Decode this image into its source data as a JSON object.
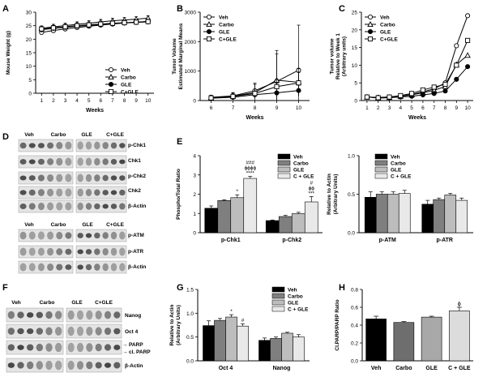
{
  "panel_labels": [
    "A",
    "B",
    "C",
    "D",
    "E",
    "F",
    "G",
    "H"
  ],
  "colors": {
    "veh": "#000000",
    "carbo": "#7f7f7f",
    "gle": "#bdbdbd",
    "cgle": "#e9e9e9",
    "bar_h_veh": "#000000",
    "bar_h_carbo": "#6e6e6e",
    "bar_h_gle": "#a8a8a8",
    "bar_h_cgle": "#dcdcdc"
  },
  "blots": {
    "D_top": {
      "groups": [
        "Veh",
        "Carbo",
        "GLE",
        "C+GLE"
      ],
      "rows": [
        "p-Chk1",
        "Chk1",
        "p-Chk2",
        "Chk2",
        "β-Actin"
      ]
    },
    "D_bottom": {
      "groups": [
        "Veh",
        "Carbo",
        "GLE",
        "C+GLE"
      ],
      "rows": [
        "p-ATM",
        "p-ATR",
        "β-Actin"
      ]
    },
    "F": {
      "groups": [
        "Veh",
        "Carbo",
        "GLE",
        "C+GLE"
      ],
      "rows": [
        "Nanog",
        "Oct 4",
        "PARP",
        "cl. PARP",
        "β-Actin"
      ],
      "arrow_glyph": "→"
    }
  },
  "chart_data": [
    {
      "id": "A",
      "type": "line",
      "xlabel": "Weeks",
      "ylabel": "Mouse Weight (g)",
      "x": [
        1,
        2,
        3,
        4,
        5,
        6,
        7,
        8,
        9,
        10
      ],
      "xlim": [
        0.5,
        10.5
      ],
      "ylim": [
        0,
        30
      ],
      "yticks": [
        0,
        5,
        10,
        15,
        20,
        25,
        30
      ],
      "legend": "bottom-right",
      "series": [
        {
          "name": "Veh",
          "marker": "circle-open",
          "values": [
            22.5,
            23.2,
            23.8,
            24.3,
            24.8,
            25.2,
            25.6,
            26.0,
            26.3,
            26.6
          ]
        },
        {
          "name": "Carbo",
          "marker": "triangle-open",
          "values": [
            24.0,
            24.6,
            25.0,
            25.5,
            25.9,
            26.4,
            26.8,
            27.1,
            27.4,
            27.8
          ]
        },
        {
          "name": "GLE",
          "marker": "circle-filled",
          "values": [
            23.5,
            24.0,
            24.4,
            24.8,
            25.1,
            25.5,
            25.8,
            26.0,
            26.2,
            26.4
          ]
        },
        {
          "name": "C+GLE",
          "marker": "square-open",
          "values": [
            23.8,
            24.2,
            24.6,
            25.0,
            25.3,
            25.6,
            25.9,
            26.1,
            26.3,
            26.5
          ]
        }
      ]
    },
    {
      "id": "B",
      "type": "line",
      "xlabel": "Weeks",
      "ylabel": "Tumor Volume Estimated Marginal Means",
      "x": [
        6,
        7,
        8,
        9,
        10
      ],
      "xlim": [
        5.5,
        10.5
      ],
      "ylim": [
        0,
        3000
      ],
      "yticks": [
        0,
        1000,
        2000,
        3000
      ],
      "legend": "top-left",
      "series": [
        {
          "name": "Veh",
          "marker": "circle-open",
          "values": [
            110,
            160,
            330,
            650,
            1030
          ],
          "errors": [
            70,
            90,
            260,
            1050,
            1530
          ]
        },
        {
          "name": "Carbo",
          "marker": "triangle-open",
          "values": [
            100,
            150,
            270,
            690,
            620
          ],
          "errors": [
            60,
            120,
            280,
            900,
            460
          ]
        },
        {
          "name": "GLE",
          "marker": "circle-filled",
          "values": [
            80,
            110,
            200,
            260,
            340
          ],
          "errors": [
            40,
            60,
            110,
            160,
            180
          ]
        },
        {
          "name": "C+GLE",
          "marker": "square-open",
          "values": [
            90,
            140,
            240,
            470,
            600
          ],
          "errors": [
            50,
            80,
            150,
            260,
            350
          ]
        }
      ]
    },
    {
      "id": "C",
      "type": "line",
      "xlabel": "Weeks",
      "ylabel": "Tumor volume Relative to Week 1 (Arbitrary units)",
      "x": [
        1,
        2,
        3,
        4,
        5,
        6,
        7,
        8,
        9,
        10
      ],
      "xlim": [
        0.5,
        10.5
      ],
      "ylim": [
        0,
        25
      ],
      "yticks": [
        0,
        5,
        10,
        15,
        20,
        25
      ],
      "legend": "top-left",
      "series": [
        {
          "name": "Veh",
          "marker": "circle-open",
          "values": [
            1.0,
            0.9,
            1.0,
            1.3,
            1.7,
            2.5,
            3.3,
            5.0,
            15.5,
            24.0
          ]
        },
        {
          "name": "Carbo",
          "marker": "triangle-open",
          "values": [
            1.0,
            0.8,
            0.9,
            1.2,
            1.6,
            2.2,
            2.9,
            4.0,
            10.2,
            12.8
          ]
        },
        {
          "name": "GLE",
          "marker": "circle-filled",
          "values": [
            1.0,
            0.7,
            0.8,
            1.0,
            1.2,
            1.6,
            2.0,
            2.7,
            6.0,
            9.6
          ]
        },
        {
          "name": "C+GLE",
          "marker": "square-open",
          "values": [
            1.0,
            0.8,
            1.0,
            1.4,
            2.0,
            3.0,
            3.8,
            4.6,
            10.0,
            17.0
          ]
        }
      ]
    },
    {
      "id": "E1",
      "type": "bar",
      "ylabel": "Phospho/Total Ratio",
      "categories": [
        "p-Chk1",
        "p-Chk2"
      ],
      "ylim": [
        0,
        4
      ],
      "yticks": [
        0,
        1,
        2,
        3,
        4
      ],
      "legend": "top-right",
      "series": [
        {
          "name": "Veh",
          "values": [
            1.27,
            0.63
          ],
          "errors": [
            0.12,
            0.03
          ],
          "labels": [
            "",
            ""
          ]
        },
        {
          "name": "Carbo",
          "values": [
            1.67,
            0.84
          ],
          "errors": [
            0.04,
            0.06
          ],
          "labels": [
            "",
            ""
          ]
        },
        {
          "name": "GLE",
          "values": [
            1.82,
            0.99
          ],
          "errors": [
            0.15,
            0.07
          ],
          "labels": [
            "*",
            ""
          ]
        },
        {
          "name": "C + GLE",
          "values": [
            2.82,
            1.6
          ],
          "errors": [
            0.1,
            0.28
          ],
          "labels": [
            "###\nϕϕϕϕ\n****",
            "#\nϕϕ\n***"
          ]
        }
      ]
    },
    {
      "id": "E2",
      "type": "bar",
      "ylabel": "Relative to Actin (Arbitrary Units)",
      "categories": [
        "p-ATM",
        "p-ATR"
      ],
      "ylim": [
        0,
        1.0
      ],
      "yticks": [
        0.0,
        0.5,
        1.0
      ],
      "legend": "top-right",
      "series": [
        {
          "name": "Veh",
          "values": [
            0.46,
            0.37
          ],
          "errors": [
            0.07,
            0.05
          ]
        },
        {
          "name": "Carbo",
          "values": [
            0.5,
            0.43
          ],
          "errors": [
            0.03,
            0.02
          ]
        },
        {
          "name": "GLE",
          "values": [
            0.5,
            0.49
          ],
          "errors": [
            0.03,
            0.02
          ]
        },
        {
          "name": "C + GLE",
          "values": [
            0.51,
            0.42
          ],
          "errors": [
            0.04,
            0.03
          ]
        }
      ]
    },
    {
      "id": "G",
      "type": "bar",
      "ylabel": "Relative to Actin (Arbitrary Units)",
      "categories": [
        "Oct 4",
        "Nanog"
      ],
      "ylim": [
        0,
        1.5
      ],
      "yticks": [
        0.0,
        0.5,
        1.0,
        1.5
      ],
      "legend": "top-right",
      "series": [
        {
          "name": "Veh",
          "values": [
            0.74,
            0.43
          ],
          "errors": [
            0.1,
            0.05
          ],
          "labels": [
            "",
            ""
          ]
        },
        {
          "name": "Carbo",
          "values": [
            0.85,
            0.47
          ],
          "errors": [
            0.04,
            0.03
          ],
          "labels": [
            "",
            ""
          ]
        },
        {
          "name": "GLE",
          "values": [
            0.92,
            0.58
          ],
          "errors": [
            0.05,
            0.02
          ],
          "labels": [
            "*",
            ""
          ]
        },
        {
          "name": "C + GLE",
          "values": [
            0.73,
            0.5
          ],
          "errors": [
            0.05,
            0.05
          ],
          "labels": [
            "#",
            ""
          ]
        }
      ]
    },
    {
      "id": "H",
      "type": "bar",
      "ylabel": "Cl.PARP/PARP Ratio",
      "categories": [
        "Veh",
        "Carbo",
        "GLE",
        "C + GLE"
      ],
      "values": [
        0.47,
        0.43,
        0.49,
        0.56
      ],
      "errors": [
        0.03,
        0.01,
        0.01,
        0.04
      ],
      "labels": [
        "",
        "",
        "",
        "ϕ"
      ],
      "ylim": [
        0,
        0.8
      ],
      "yticks": [
        0.0,
        0.2,
        0.4,
        0.6,
        0.8
      ]
    }
  ]
}
